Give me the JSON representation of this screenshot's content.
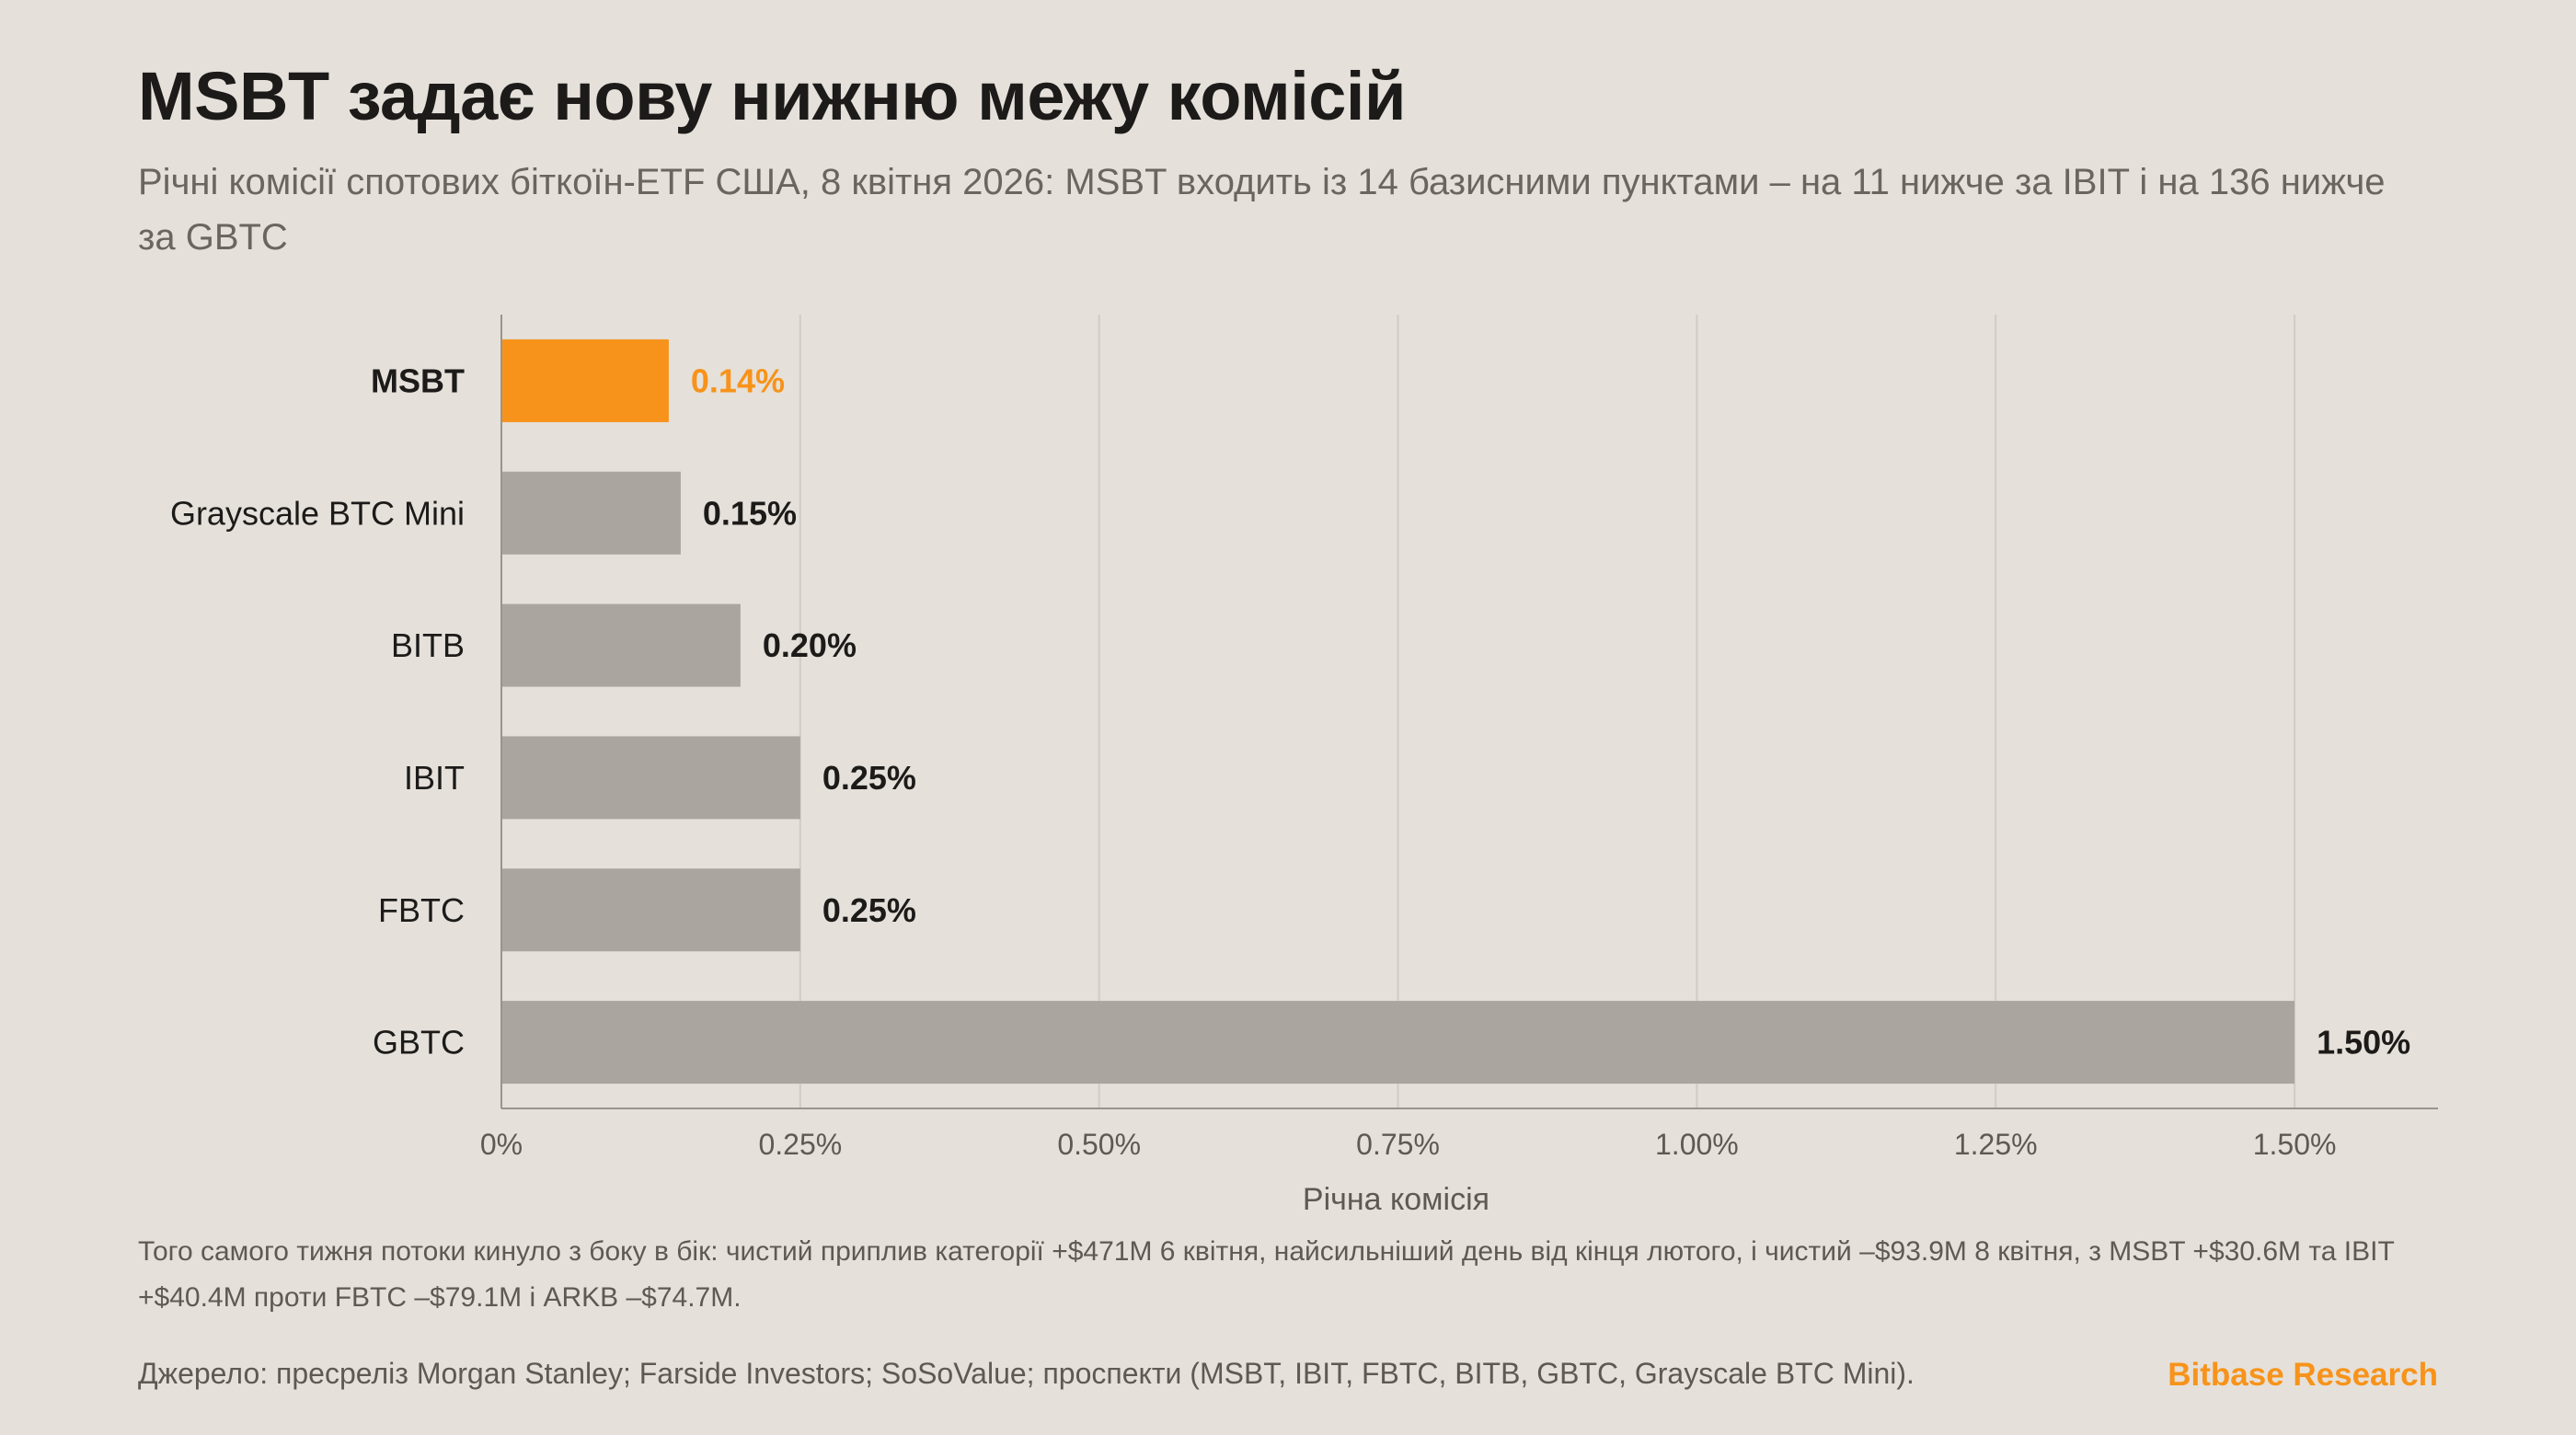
{
  "title": "MSBT задає нову нижню межу комісій",
  "subtitle": "Річні комісії спотових біткоїн-ETF США, 8 квітня 2026: MSBT входить із 14 базисними пунктами – на 11 нижче за IBIT і на 136 нижче за GBTC",
  "footnote": "Того самого тижня потоки кинуло з боку в бік: чистий приплив категорії +$471M 6 квітня, найсильніший день від кінця лютого, і чистий –$93.9M 8 квітня, з MSBT +$30.6M та IBIT +$40.4M проти FBTC –$79.1M і ARKB –$74.7M.",
  "source": "Джерело: пресреліз Morgan Stanley; Farside Investors; SoSoValue; проспекти (MSBT, IBIT, FBTC, BITB, GBTC, Grayscale BTC Mini).",
  "brand": "Bitbase Research",
  "colors": {
    "highlight": "#f7931a",
    "bar": "#aaa59e",
    "background": "#e5e0da",
    "grid": "#d2ccc5",
    "axis": "#9a948d"
  },
  "chart_data": {
    "type": "bar",
    "orientation": "horizontal",
    "xlabel": "Річна комісія",
    "ylabel": "",
    "xlim": [
      0,
      1.62
    ],
    "ticks": [
      0,
      0.25,
      0.5,
      0.75,
      1.0,
      1.25,
      1.5
    ],
    "tick_labels": [
      "0%",
      "0.25%",
      "0.50%",
      "0.75%",
      "1.00%",
      "1.25%",
      "1.50%"
    ],
    "grid": "vertical",
    "categories": [
      "MSBT",
      "Grayscale BTC Mini",
      "BITB",
      "IBIT",
      "FBTC",
      "GBTC"
    ],
    "values": [
      0.14,
      0.15,
      0.2,
      0.25,
      0.25,
      1.5
    ],
    "value_labels": [
      "0.14%",
      "0.15%",
      "0.20%",
      "0.25%",
      "0.25%",
      "1.50%"
    ],
    "highlight": "MSBT"
  }
}
